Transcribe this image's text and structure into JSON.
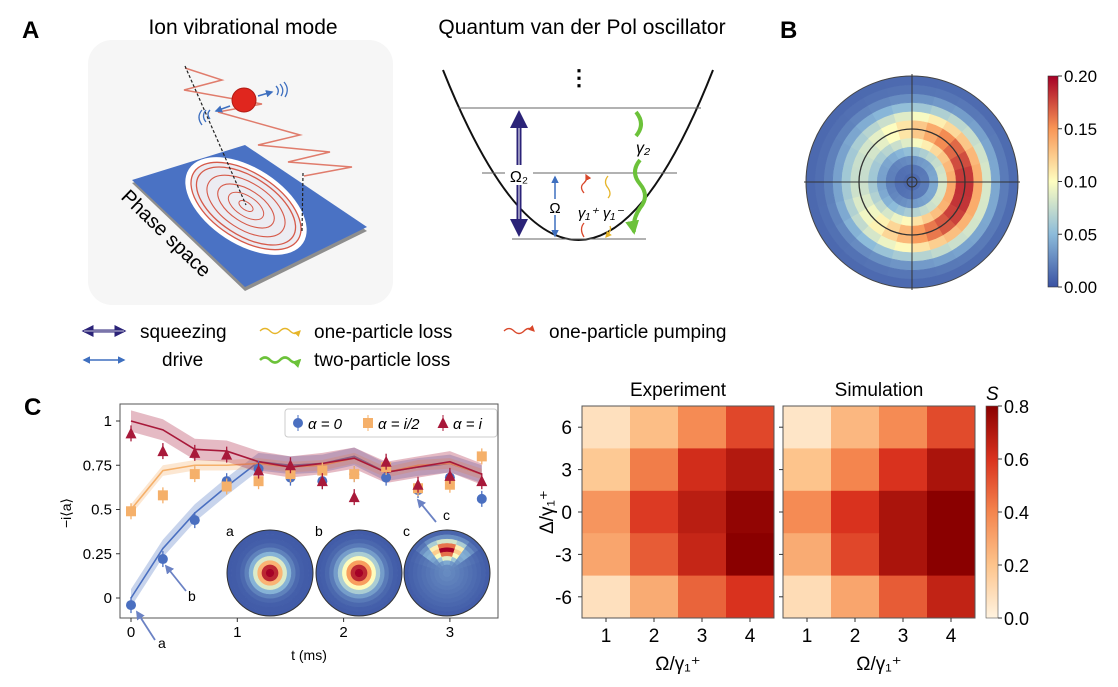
{
  "panel_labels": {
    "a": "A",
    "b": "B",
    "c": "C"
  },
  "panel_a": {
    "title_left": "Ion vibrational mode",
    "title_right": "Quantum van der Pol oscillator",
    "phase_space_label": "Phase space",
    "level_labels": {
      "squeezing": "Ω₂",
      "drive": "Ω",
      "pump": "γ₁⁺",
      "loss1": "γ₁⁻",
      "loss2": "γ₂",
      "ellipsis": "⋮"
    },
    "legend": [
      {
        "label": "squeezing",
        "icon": "double-arrow-icon",
        "color": "#2b2378"
      },
      {
        "label": "drive",
        "icon": "double-arrow-icon",
        "color": "#3e6fbf"
      },
      {
        "label": "one-particle loss",
        "icon": "wavy-arrow-icon",
        "color": "#e6b52a"
      },
      {
        "label": "two-particle loss",
        "icon": "wavy-arrow-icon",
        "color": "#6cc23a"
      },
      {
        "label": "one-particle pumping",
        "icon": "wavy-arrow-icon",
        "color": "#d9482b"
      }
    ]
  },
  "panel_b": {
    "colorbar": {
      "min": 0.0,
      "max": 0.2,
      "ticks": [
        "0.20",
        "0.15",
        "0.10",
        "0.05",
        "0.00"
      ],
      "colormap": "RdYlBu_r"
    }
  },
  "chart_data": [
    {
      "type": "line",
      "xlabel": "t (ms)",
      "ylabel": "−i⟨a⟩",
      "xlim": [
        -0.1,
        3.45
      ],
      "ylim": [
        -0.12,
        1.1
      ],
      "xticks": [
        "0",
        "1",
        "2",
        "3"
      ],
      "yticks": [
        "0",
        "0.25",
        "0.5",
        "0.75",
        "1"
      ],
      "legend_position": "top-right",
      "x": [
        0,
        0.3,
        0.6,
        0.9,
        1.2,
        1.5,
        1.8,
        2.1,
        2.4,
        2.7,
        3.0,
        3.3
      ],
      "series": [
        {
          "name": "α = 0",
          "marker": "circle",
          "color": "#4a6fc0",
          "values": [
            -0.04,
            0.22,
            0.44,
            0.66,
            0.73,
            0.68,
            0.66,
            0.7,
            0.68,
            0.61,
            0.68,
            0.56
          ],
          "simulation": [
            0.0,
            0.28,
            0.48,
            0.63,
            0.77,
            0.75,
            0.76,
            0.8,
            0.71,
            0.74,
            0.76,
            0.7
          ]
        },
        {
          "name": "α = i/2",
          "marker": "square",
          "color": "#f5b06a",
          "values": [
            0.49,
            0.58,
            0.7,
            0.63,
            0.66,
            0.7,
            0.72,
            0.7,
            0.74,
            0.62,
            0.64,
            0.8
          ],
          "simulation": [
            0.5,
            0.72,
            0.75,
            0.75,
            0.76,
            0.74,
            0.75,
            0.79,
            0.71,
            0.75,
            0.76,
            0.7
          ]
        },
        {
          "name": "α = i",
          "marker": "triangle",
          "color": "#a8193a",
          "values": [
            0.93,
            0.83,
            0.82,
            0.81,
            0.72,
            0.75,
            0.66,
            0.57,
            0.77,
            0.64,
            0.69,
            0.66
          ],
          "simulation": [
            1.0,
            0.95,
            0.84,
            0.83,
            0.77,
            0.74,
            0.76,
            0.79,
            0.71,
            0.74,
            0.77,
            0.7
          ]
        }
      ],
      "annotations": [
        "a",
        "b",
        "c"
      ]
    },
    {
      "type": "heatmap",
      "title": "Experiment",
      "xlabel": "Ω/γ₁⁺",
      "ylabel": "Δ/γ₁⁺",
      "x": [
        "1",
        "2",
        "3",
        "4"
      ],
      "y": [
        "6",
        "3",
        "0",
        "-3",
        "-6"
      ],
      "values": [
        [
          0.08,
          0.22,
          0.38,
          0.55
        ],
        [
          0.18,
          0.42,
          0.62,
          0.7
        ],
        [
          0.35,
          0.58,
          0.68,
          0.78
        ],
        [
          0.3,
          0.5,
          0.65,
          0.8
        ],
        [
          0.08,
          0.28,
          0.48,
          0.6
        ]
      ]
    },
    {
      "type": "heatmap",
      "title": "Simulation",
      "xlabel": "Ω/γ₁⁺",
      "x": [
        "1",
        "2",
        "3",
        "4"
      ],
      "y": [
        "6",
        "3",
        "0",
        "-3",
        "-6"
      ],
      "values": [
        [
          0.06,
          0.24,
          0.38,
          0.54
        ],
        [
          0.2,
          0.4,
          0.6,
          0.72
        ],
        [
          0.38,
          0.6,
          0.72,
          0.8
        ],
        [
          0.28,
          0.55,
          0.72,
          0.8
        ],
        [
          0.1,
          0.3,
          0.5,
          0.66
        ]
      ],
      "colorbar": {
        "label": "S",
        "min": 0.0,
        "max": 0.8,
        "ticks": [
          "0.8",
          "0.6",
          "0.4",
          "0.2",
          "0.0"
        ],
        "colormap": "OrRd"
      }
    }
  ]
}
